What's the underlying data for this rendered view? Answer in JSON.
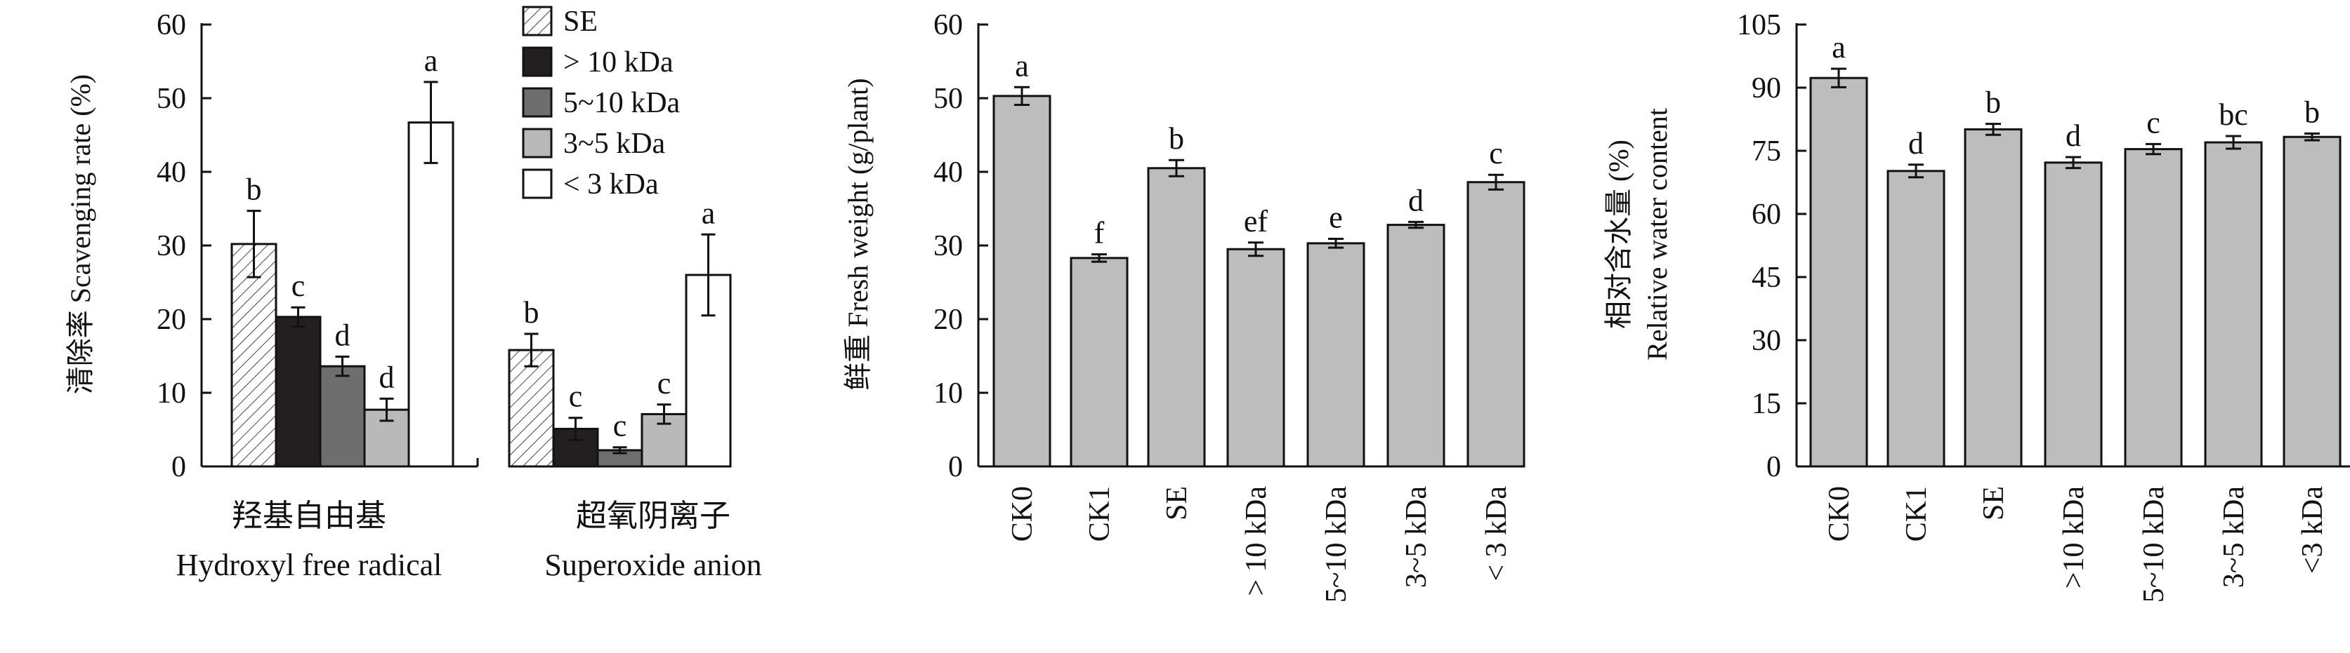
{
  "chart_data": [
    {
      "type": "bar",
      "ylabel": "清除率 Scavenging rate (%)",
      "ylim": [
        0,
        60
      ],
      "yticks": [
        0,
        10,
        20,
        30,
        40,
        50,
        60
      ],
      "groups": [
        {
          "label_cn": "羟基自由基",
          "label_en": "Hydroxyl free radical"
        },
        {
          "label_cn": "超氧阴离子",
          "label_en": "Superoxide anion"
        }
      ],
      "legend_position": "top-center",
      "series": [
        {
          "name": "SE",
          "style": "hatched",
          "color": "#ffffff",
          "values": [
            30.2,
            15.8
          ],
          "errors": [
            4.5,
            2.2
          ],
          "letters": [
            "b",
            "b"
          ]
        },
        {
          "name": "> 10 kDa",
          "style": "solid",
          "color": "#231f20",
          "values": [
            20.3,
            5.1
          ],
          "errors": [
            1.3,
            1.5
          ],
          "letters": [
            "c",
            "c"
          ]
        },
        {
          "name": "5~10 kDa",
          "style": "solid",
          "color": "#6e6e6e",
          "values": [
            13.6,
            2.2
          ],
          "errors": [
            1.3,
            0.4
          ],
          "letters": [
            "d",
            "c"
          ]
        },
        {
          "name": "3~5 kDa",
          "style": "solid",
          "color": "#b9b9b9",
          "values": [
            7.7,
            7.1
          ],
          "errors": [
            1.5,
            1.3
          ],
          "letters": [
            "d",
            "c"
          ]
        },
        {
          "name": "< 3 kDa",
          "style": "solid",
          "color": "#ffffff",
          "values": [
            46.7,
            26.0
          ],
          "errors": [
            5.5,
            5.5
          ],
          "letters": [
            "a",
            "a"
          ]
        }
      ]
    },
    {
      "type": "bar",
      "ylabel": "鲜重 Fresh weight (g/plant)",
      "ylim": [
        0,
        60
      ],
      "yticks": [
        0,
        10,
        20,
        30,
        40,
        50,
        60
      ],
      "categories": [
        "CK0",
        "CK1",
        "SE",
        "> 10 kDa",
        "5~10 kDa",
        "3~5 kDa",
        "< 3 kDa"
      ],
      "values": [
        50.3,
        28.3,
        40.5,
        29.5,
        30.3,
        32.8,
        38.6
      ],
      "errors": [
        1.2,
        0.5,
        1.1,
        0.9,
        0.6,
        0.4,
        1.0
      ],
      "letters": [
        "a",
        "f",
        "b",
        "ef",
        "e",
        "d",
        "c"
      ],
      "color": "#bdbdbd"
    },
    {
      "type": "bar",
      "ylabel_cn": "相对含水量 (%)",
      "ylabel_en": "Relative water content",
      "ylim": [
        0,
        105
      ],
      "yticks": [
        0,
        15,
        30,
        45,
        60,
        75,
        90,
        105
      ],
      "categories": [
        "CK0",
        "CK1",
        "SE",
        ">10 kDa",
        "5~10 kDa",
        "3~5 kDa",
        "<3 kDa"
      ],
      "values": [
        92.3,
        70.2,
        80.1,
        72.2,
        75.4,
        77.0,
        78.3
      ],
      "errors": [
        2.2,
        1.5,
        1.3,
        1.3,
        1.2,
        1.5,
        0.8
      ],
      "letters": [
        "a",
        "d",
        "b",
        "d",
        "c",
        "bc",
        "b"
      ],
      "color": "#bdbdbd"
    }
  ]
}
